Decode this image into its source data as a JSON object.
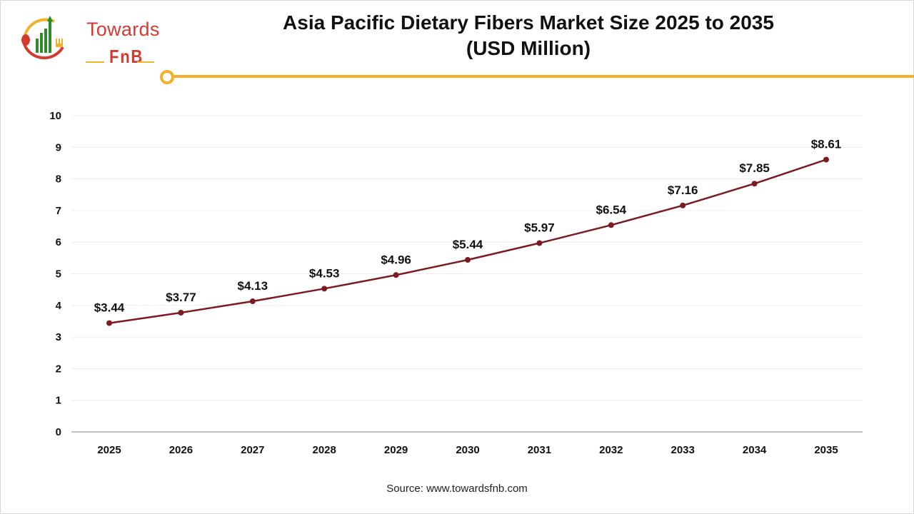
{
  "brand": {
    "name_line1": "Towards",
    "name_line2": "FnB",
    "colors": {
      "red": "#d23b30",
      "green": "#2e8b2e",
      "gold": "#f2b12b"
    }
  },
  "title": {
    "line1": "Asia Pacific Dietary Fibers Market Size 2025 to 2035",
    "line2": "(USD Million)"
  },
  "source": "Source: www.towardsfnb.com",
  "chart_data": {
    "type": "line",
    "title": "Asia Pacific Dietary Fibers Market Size 2025 to 2035 (USD Million)",
    "xlabel": "",
    "ylabel": "",
    "categories": [
      "2025",
      "2026",
      "2027",
      "2028",
      "2029",
      "2030",
      "2031",
      "2032",
      "2033",
      "2034",
      "2035"
    ],
    "series": [
      {
        "name": "Market Size (USD Million)",
        "values": [
          3.44,
          3.77,
          4.13,
          4.53,
          4.96,
          5.44,
          5.97,
          6.54,
          7.16,
          7.85,
          8.61
        ],
        "labels": [
          "$3.44",
          "$3.77",
          "$4.13",
          "$4.53",
          "$4.96",
          "$5.44",
          "$5.97",
          "$6.54",
          "$7.16",
          "$7.85",
          "$8.61"
        ],
        "color": "#7b1c24"
      }
    ],
    "yticks": [
      0,
      1,
      2,
      3,
      4,
      5,
      6,
      7,
      8,
      9,
      10
    ],
    "ylim": [
      0,
      10
    ],
    "grid": true,
    "legend": "none"
  }
}
